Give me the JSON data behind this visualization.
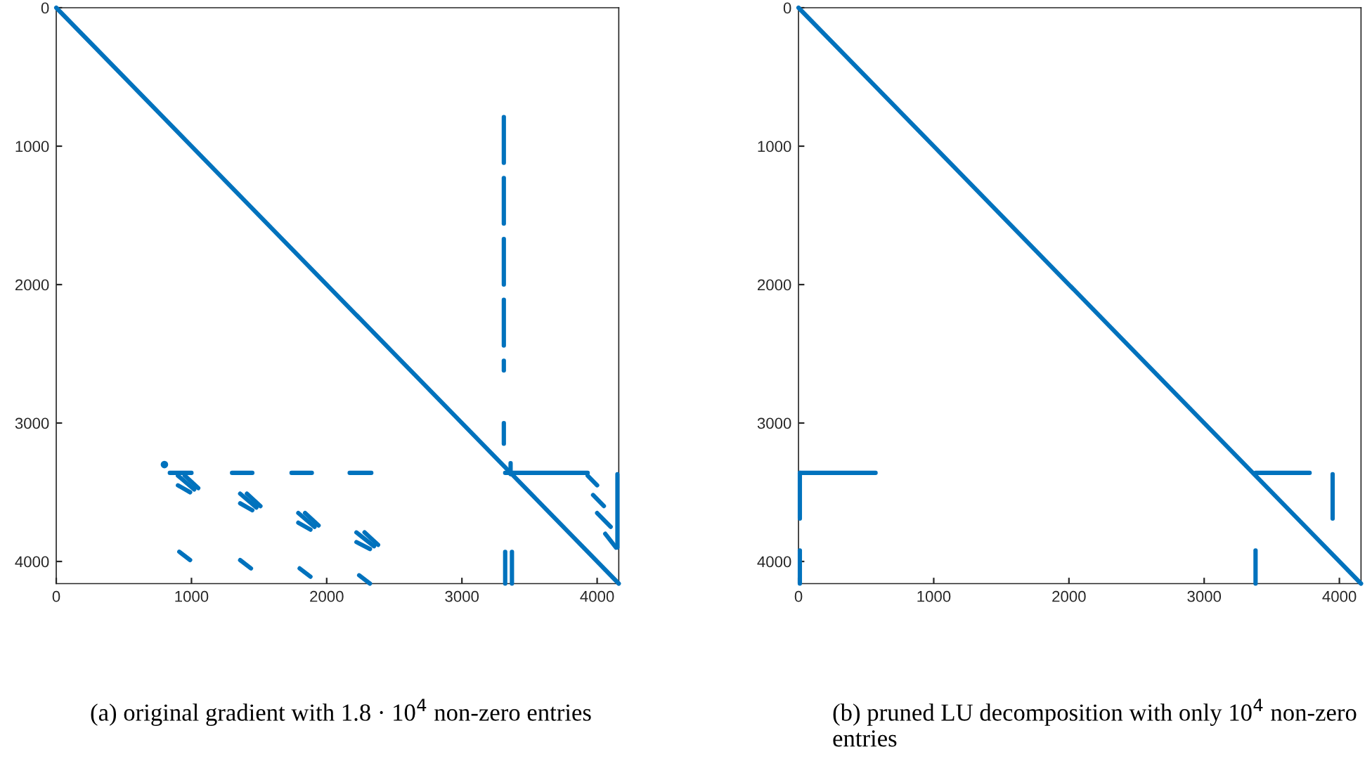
{
  "chart_data": [
    {
      "type": "line",
      "xlim": [
        0,
        4160
      ],
      "ylim": [
        4160,
        0
      ],
      "xticks": [
        0,
        1000,
        2000,
        3000,
        4000
      ],
      "yticks": [
        0,
        1000,
        2000,
        3000,
        4000
      ],
      "grid": false,
      "marker": "none",
      "line_style": "solid",
      "annotations": [
        "(a) original gradient with 1.8 · 10$^{4}$ non-zero entries"
      ],
      "series": [
        {
          "color": "#0072bd",
          "x": [
            0,
            4160
          ],
          "values": [
            0,
            4160
          ]
        },
        {
          "color": "#0072bd",
          "x": [
            3310,
            3310
          ],
          "values": [
            790,
            1120
          ]
        },
        {
          "color": "#0072bd",
          "x": [
            3310,
            3310
          ],
          "values": [
            1230,
            1560
          ]
        },
        {
          "color": "#0072bd",
          "x": [
            3310,
            3310
          ],
          "values": [
            1670,
            2000
          ]
        },
        {
          "color": "#0072bd",
          "x": [
            3310,
            3310
          ],
          "values": [
            2110,
            2440
          ]
        },
        {
          "color": "#0072bd",
          "x": [
            3310,
            3310
          ],
          "values": [
            2550,
            2620
          ]
        },
        {
          "color": "#0072bd",
          "x": [
            3310,
            3310
          ],
          "values": [
            3000,
            3150
          ]
        },
        {
          "color": "#0072bd",
          "x": [
            840,
            1000
          ],
          "values": [
            3360,
            3360
          ]
        },
        {
          "color": "#0072bd",
          "x": [
            1300,
            1450
          ],
          "values": [
            3360,
            3360
          ]
        },
        {
          "color": "#0072bd",
          "x": [
            1740,
            1890
          ],
          "values": [
            3360,
            3360
          ]
        },
        {
          "color": "#0072bd",
          "x": [
            2170,
            2330
          ],
          "values": [
            3360,
            3360
          ]
        },
        {
          "color": "#0072bd",
          "x": [
            3320,
            3930
          ],
          "values": [
            3360,
            3360
          ]
        },
        {
          "color": "#0072bd",
          "type": "scatter",
          "marker": "circle",
          "x": [
            800
          ],
          "values": [
            3300
          ]
        },
        {
          "color": "#0072bd",
          "x": [
            900,
            1020
          ],
          "values": [
            3380,
            3480
          ]
        },
        {
          "color": "#0072bd",
          "x": [
            950,
            1050
          ],
          "values": [
            3380,
            3470
          ]
        },
        {
          "color": "#0072bd",
          "x": [
            900,
            990
          ],
          "values": [
            3450,
            3500
          ]
        },
        {
          "color": "#0072bd",
          "x": [
            1360,
            1480
          ],
          "values": [
            3510,
            3610
          ]
        },
        {
          "color": "#0072bd",
          "x": [
            1410,
            1510
          ],
          "values": [
            3510,
            3600
          ]
        },
        {
          "color": "#0072bd",
          "x": [
            1360,
            1450
          ],
          "values": [
            3580,
            3630
          ]
        },
        {
          "color": "#0072bd",
          "x": [
            1790,
            1910
          ],
          "values": [
            3650,
            3750
          ]
        },
        {
          "color": "#0072bd",
          "x": [
            1840,
            1940
          ],
          "values": [
            3650,
            3740
          ]
        },
        {
          "color": "#0072bd",
          "x": [
            1790,
            1880
          ],
          "values": [
            3720,
            3770
          ]
        },
        {
          "color": "#0072bd",
          "x": [
            2220,
            2350
          ],
          "values": [
            3790,
            3890
          ]
        },
        {
          "color": "#0072bd",
          "x": [
            2280,
            2380
          ],
          "values": [
            3790,
            3880
          ]
        },
        {
          "color": "#0072bd",
          "x": [
            2220,
            2320
          ],
          "values": [
            3860,
            3910
          ]
        },
        {
          "color": "#0072bd",
          "x": [
            910,
            990
          ],
          "values": [
            3930,
            3990
          ]
        },
        {
          "color": "#0072bd",
          "x": [
            1360,
            1440
          ],
          "values": [
            3990,
            4050
          ]
        },
        {
          "color": "#0072bd",
          "x": [
            1800,
            1880
          ],
          "values": [
            4050,
            4110
          ]
        },
        {
          "color": "#0072bd",
          "x": [
            2240,
            2320
          ],
          "values": [
            4100,
            4160
          ]
        },
        {
          "color": "#0072bd",
          "x": [
            3930,
            4000
          ],
          "values": [
            3380,
            3450
          ]
        },
        {
          "color": "#0072bd",
          "x": [
            3970,
            4050
          ],
          "values": [
            3520,
            3600
          ]
        },
        {
          "color": "#0072bd",
          "x": [
            4000,
            4100
          ],
          "values": [
            3650,
            3750
          ]
        },
        {
          "color": "#0072bd",
          "x": [
            4060,
            4140
          ],
          "values": [
            3800,
            3900
          ]
        },
        {
          "color": "#0072bd",
          "x": [
            4150,
            4150
          ],
          "values": [
            3370,
            3900
          ]
        },
        {
          "color": "#0072bd",
          "x": [
            3320,
            3320
          ],
          "values": [
            3930,
            4160
          ]
        },
        {
          "color": "#0072bd",
          "x": [
            3370,
            3370
          ],
          "values": [
            3930,
            4160
          ]
        },
        {
          "color": "#0072bd",
          "x": [
            3360,
            3360
          ],
          "values": [
            3290,
            3370
          ]
        }
      ]
    },
    {
      "type": "line",
      "xlim": [
        0,
        4160
      ],
      "ylim": [
        4160,
        0
      ],
      "xticks": [
        0,
        1000,
        2000,
        3000,
        4000
      ],
      "yticks": [
        0,
        1000,
        2000,
        3000,
        4000
      ],
      "grid": false,
      "marker": "none",
      "line_style": "solid",
      "annotations": [
        "(b) pruned LU decomposition with only 10$^{4}$ non-zero entries"
      ],
      "series": [
        {
          "color": "#0072bd",
          "x": [
            0,
            4160
          ],
          "values": [
            0,
            4160
          ]
        },
        {
          "color": "#0072bd",
          "x": [
            10,
            570
          ],
          "values": [
            3360,
            3360
          ]
        },
        {
          "color": "#0072bd",
          "x": [
            10,
            10
          ],
          "values": [
            3360,
            3690
          ]
        },
        {
          "color": "#0072bd",
          "x": [
            10,
            10
          ],
          "values": [
            3920,
            4160
          ]
        },
        {
          "color": "#0072bd",
          "x": [
            3380,
            3780
          ],
          "values": [
            3360,
            3360
          ]
        },
        {
          "color": "#0072bd",
          "x": [
            3950,
            3950
          ],
          "values": [
            3370,
            3690
          ]
        },
        {
          "color": "#0072bd",
          "x": [
            3380,
            3380
          ],
          "values": [
            3920,
            4160
          ]
        }
      ]
    }
  ]
}
